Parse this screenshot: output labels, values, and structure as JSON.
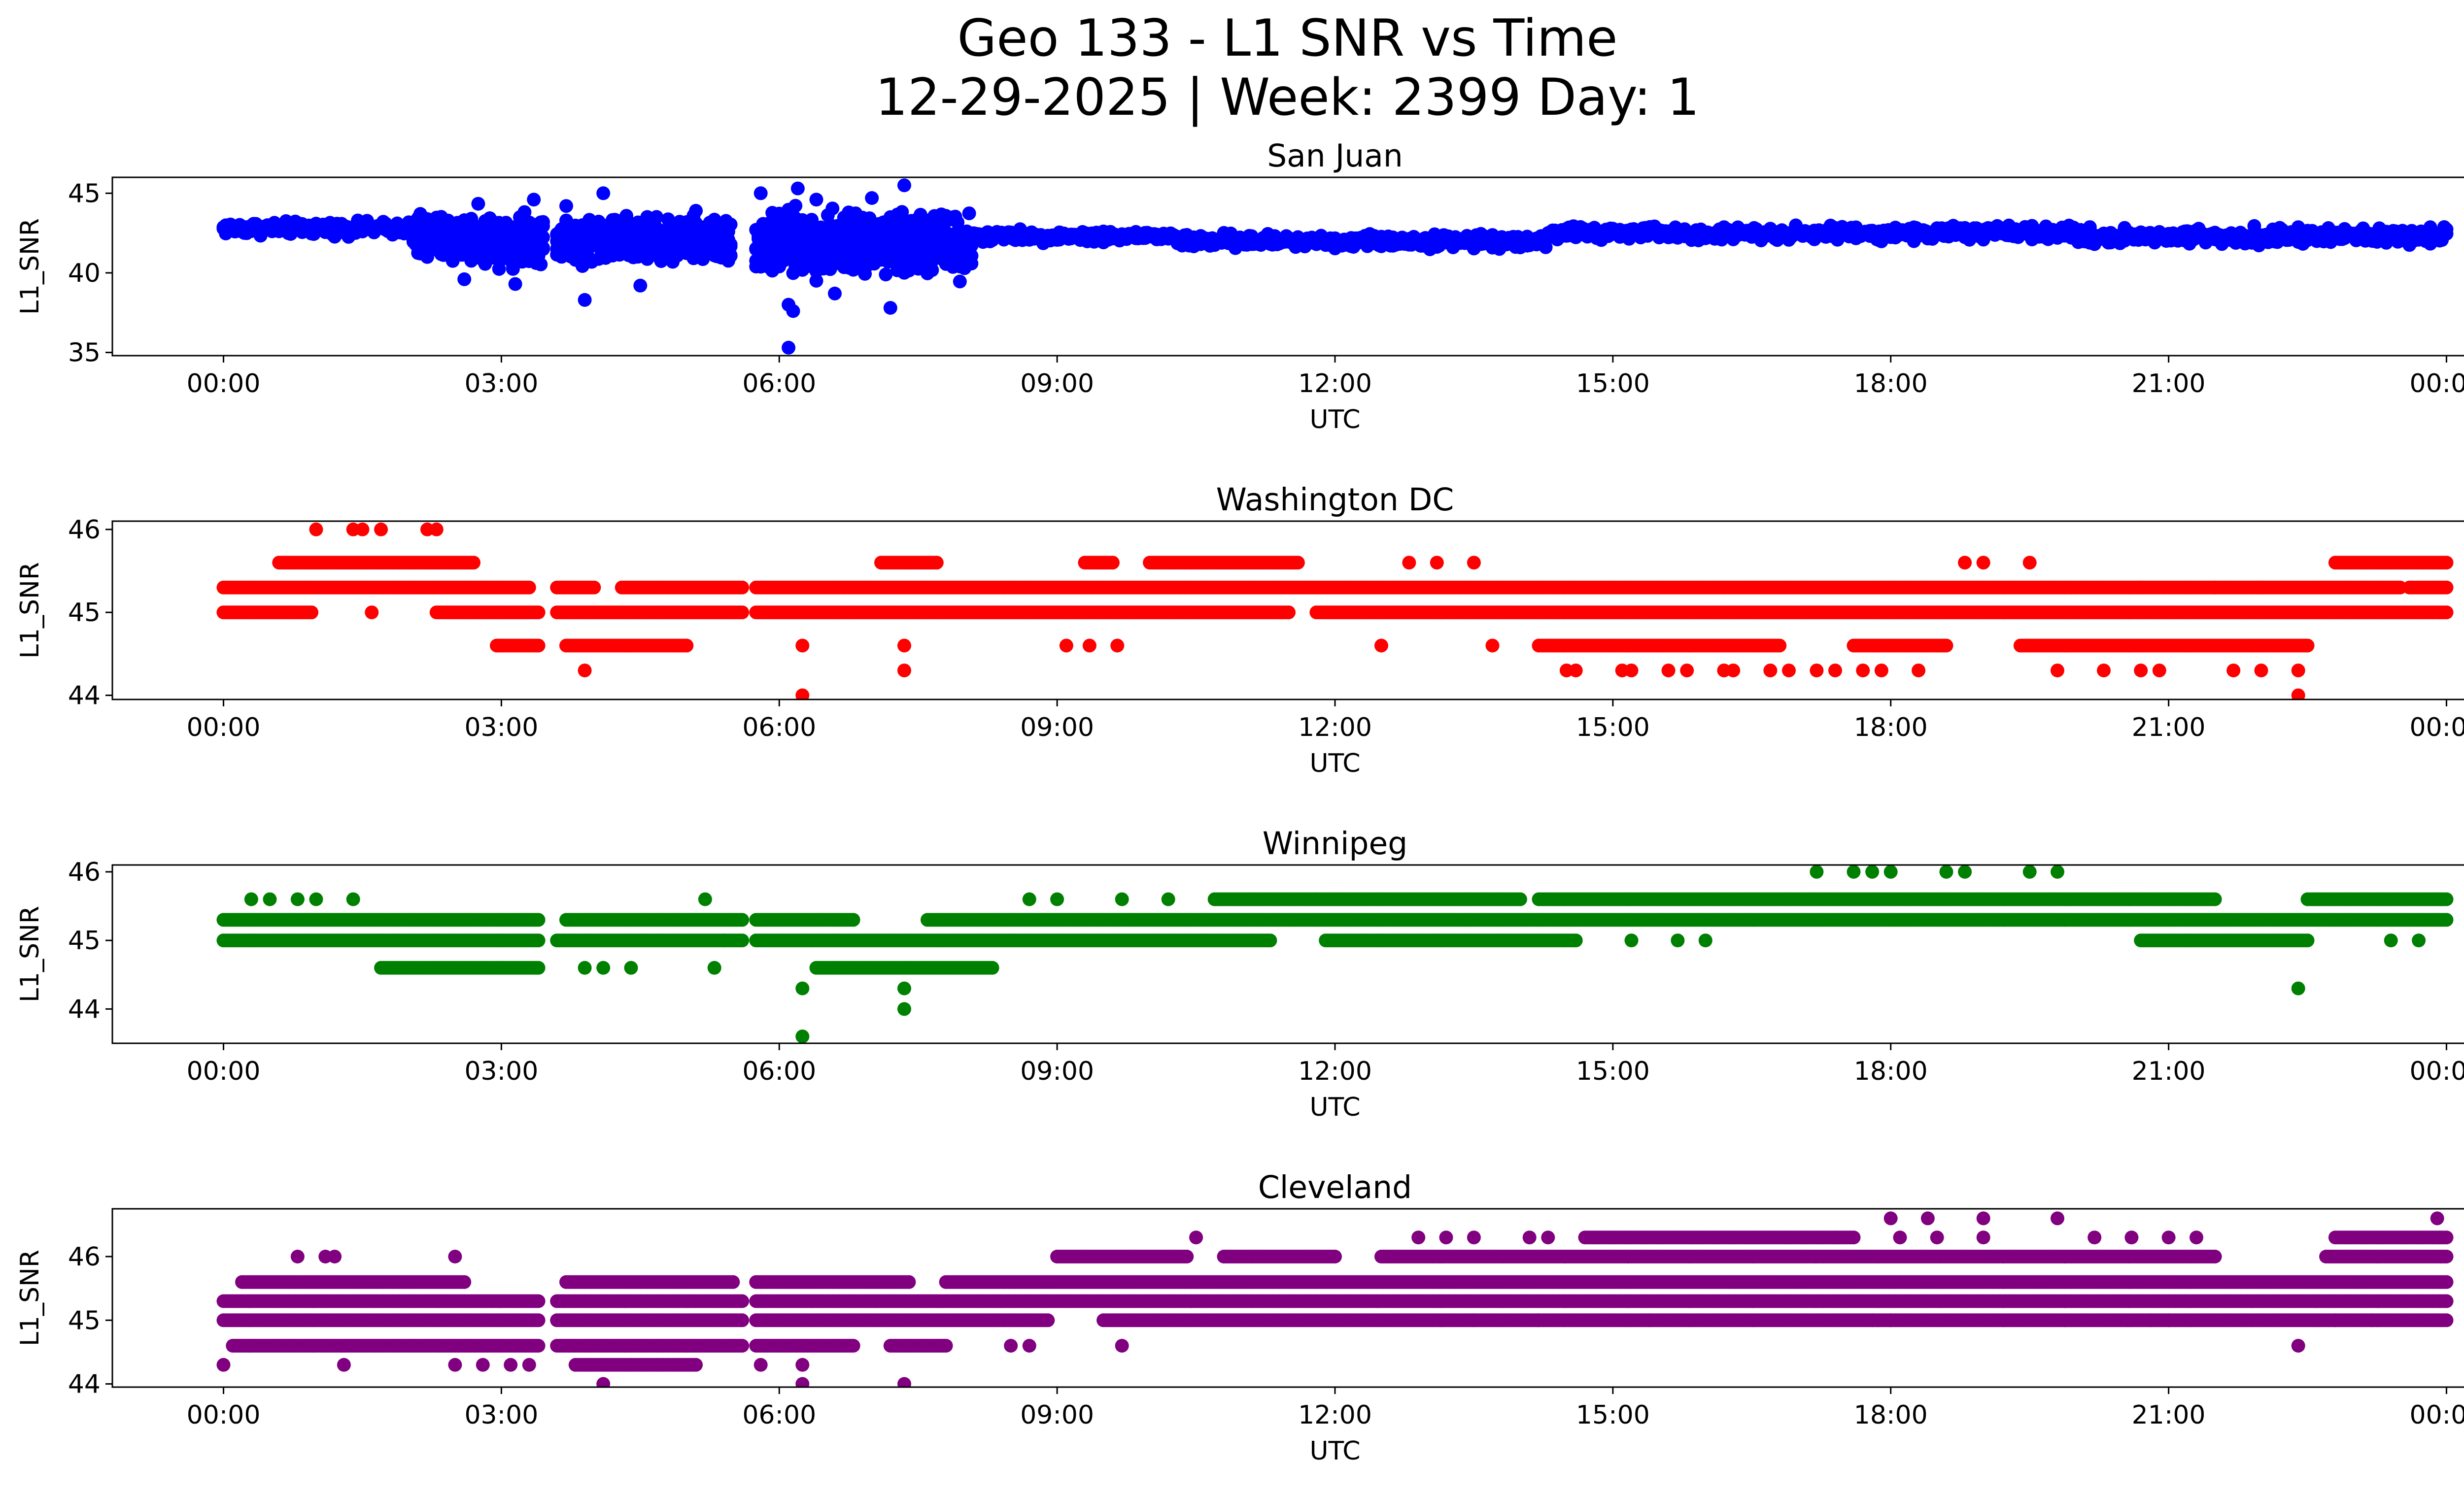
{
  "figure": {
    "title_line1": "Geo 133 - L1 SNR vs Time",
    "title_line2": "12-29-2025 | Week: 2399 Day: 1"
  },
  "chart_data": [
    {
      "type": "scatter",
      "title": "San Juan",
      "xlabel": "UTC",
      "ylabel": "L1_SNR",
      "color": "#0000ff",
      "xlim": [
        -1.2,
        25.2
      ],
      "ylim": [
        34.8,
        46.0
      ],
      "xticks": [
        0,
        3,
        6,
        9,
        12,
        15,
        18,
        21,
        24
      ],
      "xtick_labels": [
        "00:00",
        "03:00",
        "06:00",
        "09:00",
        "12:00",
        "15:00",
        "18:00",
        "21:00",
        "00:00"
      ],
      "yticks": [
        35,
        40,
        45
      ],
      "ytick_labels": [
        "35",
        "40",
        "45"
      ],
      "bands": [
        {
          "x": [
            0.0,
            2.05
          ],
          "y": [
            42.2,
            43.4
          ]
        },
        {
          "x": [
            2.05,
            3.45
          ],
          "y": [
            40.0,
            44.4
          ]
        },
        {
          "x": [
            3.6,
            5.5
          ],
          "y": [
            40.2,
            44.0
          ]
        },
        {
          "x": [
            5.75,
            8.1
          ],
          "y": [
            39.0,
            44.6
          ]
        },
        {
          "x": [
            8.1,
            10.3
          ],
          "y": [
            41.8,
            42.8
          ]
        },
        {
          "x": [
            10.3,
            14.3
          ],
          "y": [
            41.4,
            42.6
          ]
        },
        {
          "x": [
            14.3,
            20.0
          ],
          "y": [
            41.9,
            43.1
          ]
        },
        {
          "x": [
            20.0,
            24.0
          ],
          "y": [
            41.6,
            43.0
          ]
        }
      ],
      "points": [
        {
          "x": 3.7,
          "y": 44.2
        },
        {
          "x": 3.35,
          "y": 44.6
        },
        {
          "x": 4.1,
          "y": 45.0
        },
        {
          "x": 3.9,
          "y": 38.3
        },
        {
          "x": 4.5,
          "y": 39.2
        },
        {
          "x": 5.8,
          "y": 45.0
        },
        {
          "x": 6.1,
          "y": 38.0
        },
        {
          "x": 6.2,
          "y": 45.3
        },
        {
          "x": 6.15,
          "y": 37.6
        },
        {
          "x": 6.4,
          "y": 44.6
        },
        {
          "x": 7.0,
          "y": 44.7
        },
        {
          "x": 7.35,
          "y": 45.5
        },
        {
          "x": 7.2,
          "y": 37.8
        },
        {
          "x": 6.1,
          "y": 35.3
        },
        {
          "x": 3.15,
          "y": 39.3
        },
        {
          "x": 2.6,
          "y": 39.6
        },
        {
          "x": 6.6,
          "y": 38.7
        },
        {
          "x": 5.1,
          "y": 43.9
        },
        {
          "x": 8.0,
          "y": 41.3
        }
      ]
    },
    {
      "type": "scatter",
      "title": "Washington DC",
      "xlabel": "UTC",
      "ylabel": "L1_SNR",
      "color": "#ff0000",
      "xlim": [
        -1.2,
        25.2
      ],
      "ylim": [
        43.95,
        46.1
      ],
      "xticks": [
        0,
        3,
        6,
        9,
        12,
        15,
        18,
        21,
        24
      ],
      "xtick_labels": [
        "00:00",
        "03:00",
        "06:00",
        "09:00",
        "12:00",
        "15:00",
        "18:00",
        "21:00",
        "00:00"
      ],
      "yticks": [
        44,
        45,
        46
      ],
      "ytick_labels": [
        "44",
        "45",
        "46"
      ],
      "rows": [
        {
          "y": 45.0,
          "x": [
            0.0,
            0.95,
            2.3,
            3.4,
            3.6,
            5.6,
            5.75,
            11.5,
            11.8,
            24.0
          ]
        },
        {
          "y": 45.3,
          "x": [
            0.0,
            3.3,
            3.6,
            4.0,
            4.3,
            5.6,
            5.75,
            23.5,
            23.6,
            24.0
          ]
        },
        {
          "y": 45.6,
          "x": [
            0.6,
            2.7,
            7.1,
            7.7,
            9.3,
            9.6,
            10.0,
            11.6,
            22.8,
            24.0
          ]
        },
        {
          "y": 44.6,
          "x": [
            2.95,
            3.4,
            3.7,
            5.0,
            14.2,
            16.8,
            17.6,
            18.6,
            19.4,
            22.5
          ]
        }
      ],
      "points": [
        {
          "x": 1.0,
          "y": 46.0
        },
        {
          "x": 1.4,
          "y": 46.0
        },
        {
          "x": 1.5,
          "y": 46.0
        },
        {
          "x": 1.7,
          "y": 46.0
        },
        {
          "x": 2.2,
          "y": 46.0
        },
        {
          "x": 2.3,
          "y": 46.0
        },
        {
          "x": 1.6,
          "y": 45.0
        },
        {
          "x": 3.9,
          "y": 44.3
        },
        {
          "x": 6.25,
          "y": 44.0
        },
        {
          "x": 7.35,
          "y": 44.3
        },
        {
          "x": 6.25,
          "y": 44.6
        },
        {
          "x": 7.35,
          "y": 44.6
        },
        {
          "x": 9.1,
          "y": 44.6
        },
        {
          "x": 9.35,
          "y": 44.6
        },
        {
          "x": 9.65,
          "y": 44.6
        },
        {
          "x": 12.5,
          "y": 44.6
        },
        {
          "x": 13.7,
          "y": 44.6
        },
        {
          "x": 12.8,
          "y": 45.6
        },
        {
          "x": 13.1,
          "y": 45.6
        },
        {
          "x": 13.5,
          "y": 45.6
        },
        {
          "x": 18.8,
          "y": 45.6
        },
        {
          "x": 19.0,
          "y": 45.6
        },
        {
          "x": 19.5,
          "y": 45.6
        },
        {
          "x": 14.5,
          "y": 44.3
        },
        {
          "x": 14.6,
          "y": 44.3
        },
        {
          "x": 15.1,
          "y": 44.3
        },
        {
          "x": 15.2,
          "y": 44.3
        },
        {
          "x": 15.6,
          "y": 44.3
        },
        {
          "x": 15.8,
          "y": 44.3
        },
        {
          "x": 16.2,
          "y": 44.3
        },
        {
          "x": 16.3,
          "y": 44.3
        },
        {
          "x": 16.7,
          "y": 44.3
        },
        {
          "x": 16.9,
          "y": 44.3
        },
        {
          "x": 17.2,
          "y": 44.3
        },
        {
          "x": 17.4,
          "y": 44.3
        },
        {
          "x": 17.7,
          "y": 44.3
        },
        {
          "x": 17.9,
          "y": 44.3
        },
        {
          "x": 18.3,
          "y": 44.3
        },
        {
          "x": 19.8,
          "y": 44.3
        },
        {
          "x": 20.3,
          "y": 44.3
        },
        {
          "x": 20.7,
          "y": 44.3
        },
        {
          "x": 20.9,
          "y": 44.3
        },
        {
          "x": 21.7,
          "y": 44.3
        },
        {
          "x": 22.0,
          "y": 44.3
        },
        {
          "x": 22.4,
          "y": 44.3
        },
        {
          "x": 22.4,
          "y": 44.0
        },
        {
          "x": 20.7,
          "y": 45.3
        },
        {
          "x": 21.5,
          "y": 45.3
        },
        {
          "x": 22.0,
          "y": 45.3
        }
      ]
    },
    {
      "type": "scatter",
      "title": "Winnipeg",
      "xlabel": "UTC",
      "ylabel": "L1_SNR",
      "color": "#008000",
      "xlim": [
        -1.2,
        25.2
      ],
      "ylim": [
        43.5,
        46.1
      ],
      "xticks": [
        0,
        3,
        6,
        9,
        12,
        15,
        18,
        21,
        24
      ],
      "xtick_labels": [
        "00:00",
        "03:00",
        "06:00",
        "09:00",
        "12:00",
        "15:00",
        "18:00",
        "21:00",
        "00:00"
      ],
      "yticks": [
        44,
        45,
        46
      ],
      "ytick_labels": [
        "44",
        "45",
        "46"
      ],
      "rows": [
        {
          "y": 45.0,
          "x": [
            0.0,
            3.4,
            3.6,
            5.6,
            5.75,
            11.3,
            11.9,
            14.6,
            20.7,
            22.5
          ]
        },
        {
          "y": 45.3,
          "x": [
            0.0,
            3.4,
            3.7,
            5.6,
            5.75,
            6.8,
            7.6,
            24.0
          ]
        },
        {
          "y": 45.6,
          "x": [
            10.7,
            14.0,
            14.2,
            21.5,
            22.5,
            24.0
          ]
        },
        {
          "y": 44.6,
          "x": [
            1.7,
            3.4,
            6.4,
            8.3
          ]
        }
      ],
      "points": [
        {
          "x": 0.3,
          "y": 45.6
        },
        {
          "x": 0.5,
          "y": 45.6
        },
        {
          "x": 0.8,
          "y": 45.6
        },
        {
          "x": 1.0,
          "y": 45.6
        },
        {
          "x": 1.4,
          "y": 45.6
        },
        {
          "x": 5.2,
          "y": 45.6
        },
        {
          "x": 8.7,
          "y": 45.6
        },
        {
          "x": 9.0,
          "y": 45.6
        },
        {
          "x": 9.7,
          "y": 45.6
        },
        {
          "x": 10.2,
          "y": 45.6
        },
        {
          "x": 3.9,
          "y": 44.6
        },
        {
          "x": 4.1,
          "y": 44.6
        },
        {
          "x": 4.4,
          "y": 44.6
        },
        {
          "x": 5.3,
          "y": 44.6
        },
        {
          "x": 6.25,
          "y": 44.3
        },
        {
          "x": 6.25,
          "y": 43.6
        },
        {
          "x": 7.35,
          "y": 44.3
        },
        {
          "x": 7.35,
          "y": 44.0
        },
        {
          "x": 17.2,
          "y": 46.0
        },
        {
          "x": 17.6,
          "y": 46.0
        },
        {
          "x": 17.8,
          "y": 46.0
        },
        {
          "x": 18.0,
          "y": 46.0
        },
        {
          "x": 18.6,
          "y": 46.0
        },
        {
          "x": 18.8,
          "y": 46.0
        },
        {
          "x": 19.5,
          "y": 46.0
        },
        {
          "x": 19.8,
          "y": 46.0
        },
        {
          "x": 22.4,
          "y": 44.3
        },
        {
          "x": 23.4,
          "y": 45.0
        },
        {
          "x": 23.7,
          "y": 45.0
        },
        {
          "x": 15.2,
          "y": 45.0
        },
        {
          "x": 15.7,
          "y": 45.0
        },
        {
          "x": 16.0,
          "y": 45.0
        },
        {
          "x": 5.4,
          "y": 45.0
        }
      ]
    },
    {
      "type": "scatter",
      "title": "Cleveland",
      "xlabel": "UTC",
      "ylabel": "L1_SNR",
      "color": "#800080",
      "xlim": [
        -1.2,
        25.2
      ],
      "ylim": [
        43.95,
        46.75
      ],
      "xticks": [
        0,
        3,
        6,
        9,
        12,
        15,
        18,
        21,
        24
      ],
      "xtick_labels": [
        "00:00",
        "03:00",
        "06:00",
        "09:00",
        "12:00",
        "15:00",
        "18:00",
        "21:00",
        "00:00"
      ],
      "yticks": [
        44,
        45,
        46
      ],
      "ytick_labels": [
        "44",
        "45",
        "46"
      ],
      "rows": [
        {
          "y": 45.0,
          "x": [
            0.0,
            3.4,
            3.6,
            5.6,
            5.75,
            8.9,
            9.5,
            24.0
          ]
        },
        {
          "y": 45.3,
          "x": [
            0.0,
            3.4,
            3.6,
            5.6,
            5.75,
            24.0
          ]
        },
        {
          "y": 45.6,
          "x": [
            0.2,
            2.6,
            3.7,
            5.5,
            5.75,
            7.4,
            7.8,
            24.0
          ]
        },
        {
          "y": 44.6,
          "x": [
            0.1,
            3.4,
            3.6,
            5.6,
            5.75,
            6.8,
            7.2,
            7.8
          ]
        },
        {
          "y": 46.0,
          "x": [
            9.0,
            10.4,
            10.8,
            12.0,
            12.5,
            21.5,
            22.7,
            24.0
          ]
        },
        {
          "y": 44.3,
          "x": [
            3.8,
            5.1
          ]
        },
        {
          "y": 46.3,
          "x": [
            14.7,
            17.6,
            22.8,
            24.0
          ]
        }
      ],
      "points": [
        {
          "x": 0.8,
          "y": 46.0
        },
        {
          "x": 1.1,
          "y": 46.0
        },
        {
          "x": 1.2,
          "y": 46.0
        },
        {
          "x": 2.5,
          "y": 46.0
        },
        {
          "x": 0.0,
          "y": 44.3
        },
        {
          "x": 1.3,
          "y": 44.3
        },
        {
          "x": 2.5,
          "y": 44.3
        },
        {
          "x": 2.8,
          "y": 44.3
        },
        {
          "x": 3.1,
          "y": 44.3
        },
        {
          "x": 3.3,
          "y": 44.3
        },
        {
          "x": 4.1,
          "y": 44.0
        },
        {
          "x": 6.25,
          "y": 44.0
        },
        {
          "x": 6.25,
          "y": 44.3
        },
        {
          "x": 5.8,
          "y": 44.3
        },
        {
          "x": 7.35,
          "y": 44.0
        },
        {
          "x": 8.5,
          "y": 44.6
        },
        {
          "x": 8.7,
          "y": 44.6
        },
        {
          "x": 9.7,
          "y": 44.6
        },
        {
          "x": 10.5,
          "y": 46.3
        },
        {
          "x": 12.9,
          "y": 46.3
        },
        {
          "x": 13.2,
          "y": 46.3
        },
        {
          "x": 13.5,
          "y": 46.3
        },
        {
          "x": 14.1,
          "y": 46.3
        },
        {
          "x": 14.3,
          "y": 46.3
        },
        {
          "x": 18.0,
          "y": 46.6
        },
        {
          "x": 18.4,
          "y": 46.6
        },
        {
          "x": 19.0,
          "y": 46.6
        },
        {
          "x": 19.8,
          "y": 46.6
        },
        {
          "x": 23.9,
          "y": 46.6
        },
        {
          "x": 13.5,
          "y": 45.0
        },
        {
          "x": 14.2,
          "y": 45.0
        },
        {
          "x": 15.4,
          "y": 45.0
        },
        {
          "x": 17.8,
          "y": 45.0
        },
        {
          "x": 18.0,
          "y": 45.0
        },
        {
          "x": 20.8,
          "y": 45.0
        },
        {
          "x": 21.0,
          "y": 45.0
        },
        {
          "x": 22.8,
          "y": 45.0
        },
        {
          "x": 23.2,
          "y": 45.0
        },
        {
          "x": 22.4,
          "y": 44.6
        },
        {
          "x": 24.0,
          "y": 45.3
        },
        {
          "x": 17.4,
          "y": 46.3
        },
        {
          "x": 18.1,
          "y": 46.3
        },
        {
          "x": 18.5,
          "y": 46.3
        },
        {
          "x": 19.0,
          "y": 46.3
        },
        {
          "x": 20.2,
          "y": 46.3
        },
        {
          "x": 20.6,
          "y": 46.3
        },
        {
          "x": 21.0,
          "y": 46.3
        },
        {
          "x": 21.3,
          "y": 46.3
        }
      ]
    }
  ]
}
